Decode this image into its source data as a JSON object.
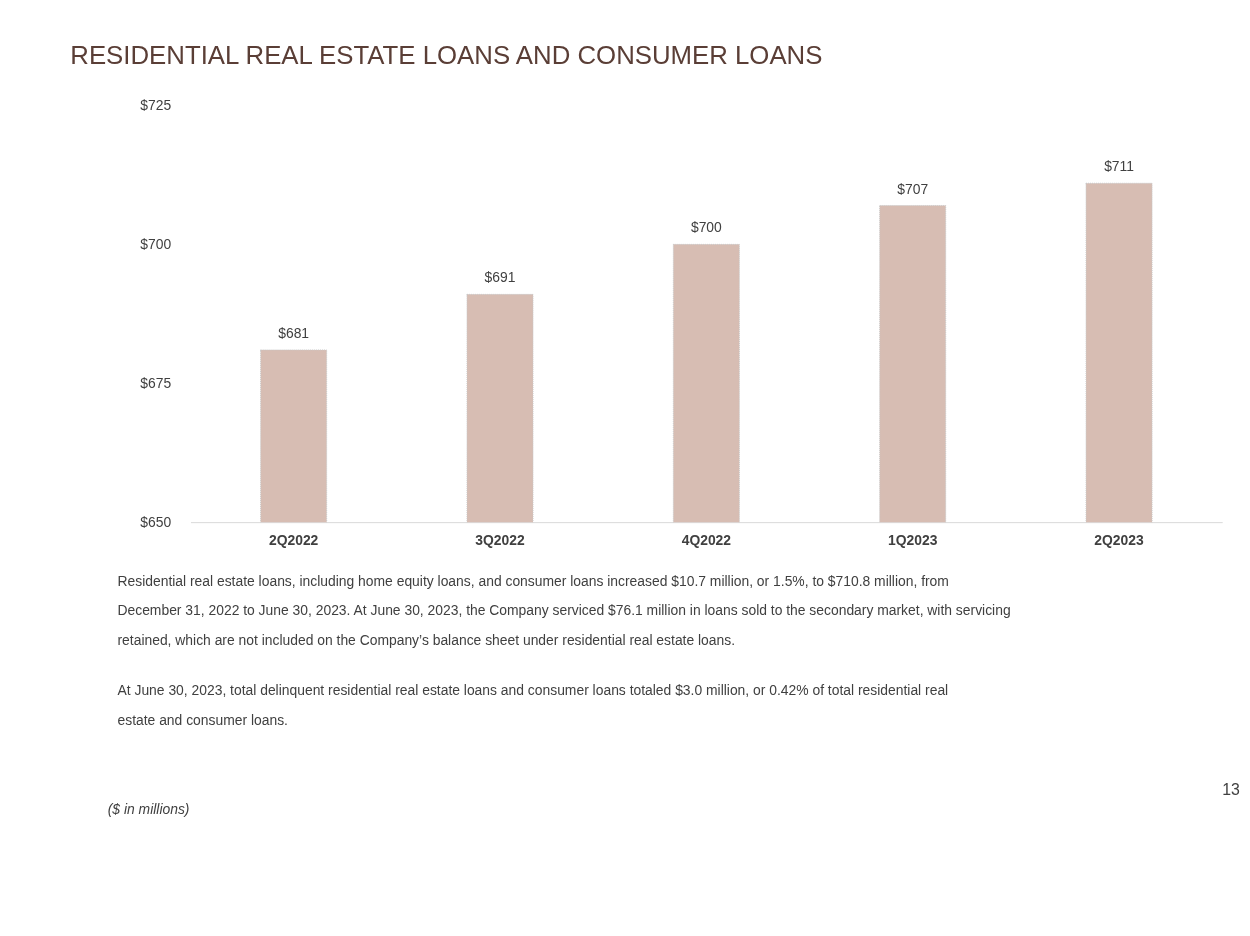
{
  "chart_data": {
    "type": "bar",
    "title": "RESIDENTIAL REAL ESTATE LOANS AND CONSUMER LOANS",
    "categories": [
      "2Q2022",
      "3Q2022",
      "4Q2022",
      "1Q2023",
      "2Q2023"
    ],
    "values": [
      681,
      691,
      700,
      707,
      711
    ],
    "value_labels": [
      "$681",
      "$691",
      "$700",
      "$707",
      "$711"
    ],
    "color": "#d7bdb3",
    "ylim": [
      650,
      725
    ],
    "yticks": [
      {
        "value": 650,
        "label": "$650"
      },
      {
        "value": 675,
        "label": "$675"
      },
      {
        "value": 700,
        "label": "$700"
      },
      {
        "value": 725,
        "label": "$725"
      }
    ],
    "grid": false,
    "annotations": [
      "Residential real estate loans, including home equity loans, and consumer loans increased $10.7 million, or 1.5%, to $710.8 million, from December 31, 2022 to June 30, 2023. At June 30, 2023, the Company serviced $76.1 million in loans sold to the secondary market, with servicing retained, which are not included on the Company’s balance sheet under residential real estate loans.",
      "At June 30, 2023, total delinquent residential real estate loans and consumer loans totaled $3.0 million, or 0.42% of total residential real estate and consumer loans.",
      "($ in millions)",
      "13"
    ]
  }
}
